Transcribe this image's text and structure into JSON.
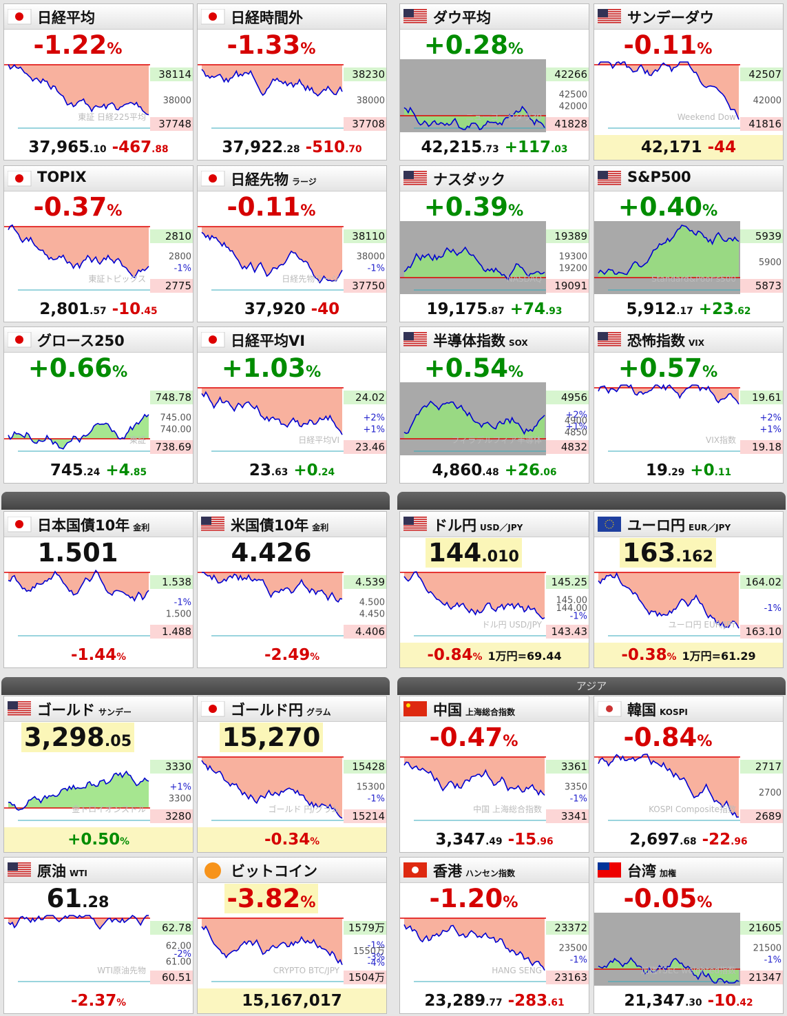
{
  "sections": [
    "アジア"
  ],
  "tiles": [
    {
      "flag": "jp",
      "title": "日経平均",
      "top": [
        "-1.22",
        "%"
      ],
      "hi": "38114",
      "lo": "37748",
      "marks": [
        "38000"
      ],
      "wm": "東証 日経225平均",
      "bottom": [
        "37,965",
        ".10",
        "-467",
        ".88"
      ],
      "chart": "neg"
    },
    {
      "flag": "jp",
      "title": "日経時間外",
      "top": [
        "-1.33",
        "%"
      ],
      "hi": "38230",
      "lo": "37708",
      "marks": [
        "38000"
      ],
      "bottom": [
        "37,922",
        ".28",
        "-510",
        ".70"
      ],
      "chart": "neg"
    },
    {
      "flag": "us",
      "title": "ダウ平均",
      "top": [
        "+0.28",
        "%"
      ],
      "hi": "42266",
      "lo": "41828",
      "marks": [
        "42500",
        "42000"
      ],
      "wm": "ニューヨークダウ30",
      "bottom": [
        "42,215",
        ".73",
        "+117",
        ".03"
      ],
      "chart": "pos",
      "bg": "gray"
    },
    {
      "flag": "us",
      "title": "サンデーダウ",
      "top": [
        "-0.11",
        "%"
      ],
      "hi": "42507",
      "lo": "41816",
      "marks": [
        "42000"
      ],
      "wm": "Weekend Dow",
      "bottom": [
        "42,171",
        "-44"
      ],
      "chart": "neg",
      "footbg": true
    },
    {
      "flag": "jp",
      "title": "TOPIX",
      "top": [
        "-0.37",
        "%"
      ],
      "hi": "2810",
      "lo": "2775",
      "marks": [
        "2800",
        "-1%"
      ],
      "wm": "東証トピックス",
      "bottom": [
        "2,801",
        ".57",
        "-10",
        ".45"
      ],
      "chart": "neg"
    },
    {
      "flag": "jp",
      "title": "日経先物",
      "sub": "ラージ",
      "top": [
        "-0.11",
        "%"
      ],
      "hi": "38110",
      "lo": "37750",
      "marks": [
        "38000",
        "-1%"
      ],
      "wm": "日経先物ラージ",
      "bottom": [
        "37,920",
        "-40"
      ],
      "chart": "neg"
    },
    {
      "flag": "us",
      "title": "ナスダック",
      "top": [
        "+0.39",
        "%"
      ],
      "hi": "19389",
      "lo": "19091",
      "marks": [
        "19300",
        "19200"
      ],
      "wm": "NASDAQ",
      "bottom": [
        "19,175",
        ".87",
        "+74",
        ".93"
      ],
      "chart": "pos",
      "bg": "gray"
    },
    {
      "flag": "us",
      "title": "S&P500",
      "top": [
        "+0.40",
        "%"
      ],
      "hi": "5939",
      "lo": "5873",
      "marks": [
        "5900"
      ],
      "wm": "Standard&Poor's500",
      "bottom": [
        "5,912",
        ".17",
        "+23",
        ".62"
      ],
      "chart": "pos",
      "bg": "gray"
    },
    {
      "flag": "jp",
      "title": "グロース250",
      "top": [
        "+0.66",
        "%"
      ],
      "hi": "748.78",
      "lo": "738.69",
      "marks": [
        "745.00",
        "740.00"
      ],
      "wm": "東証",
      "bottom": [
        "745",
        ".24",
        "+4",
        ".85"
      ],
      "chart": "pos"
    },
    {
      "flag": "jp",
      "title": "日経平均VI",
      "top": [
        "+1.03",
        "%"
      ],
      "hi": "24.02",
      "lo": "23.46",
      "marks": [
        "+2%",
        "+1%"
      ],
      "wm": "日経平均VI",
      "bottom": [
        "23",
        ".63",
        "+0",
        ".24"
      ],
      "chart": "neg"
    },
    {
      "flag": "us",
      "title": "半導体指数",
      "sub": "SOX",
      "top": [
        "+0.54",
        "%"
      ],
      "hi": "4956",
      "lo": "4832",
      "marks": [
        "+2%",
        "4900",
        "+1%",
        "4850"
      ],
      "wm": "フィラデルフィア半導体",
      "bottom": [
        "4,860",
        ".48",
        "+26",
        ".06"
      ],
      "chart": "pos",
      "bg": "gray"
    },
    {
      "flag": "us",
      "title": "恐怖指数",
      "sub": "VIX",
      "top": [
        "+0.57",
        "%"
      ],
      "hi": "19.61",
      "lo": "19.18",
      "marks": [
        "+2%",
        "+1%"
      ],
      "wm": "VIX指数",
      "bottom": [
        "19",
        ".29",
        "+0",
        ".11"
      ],
      "chart": "neg"
    },
    {
      "flag": "jp",
      "title": "日本国債10年",
      "sub": "金利",
      "top": [
        "1.501"
      ],
      "hi": "1.538",
      "lo": "1.488",
      "marks": [
        "-1%",
        "1.500"
      ],
      "bottom": [
        "-1.44",
        "%"
      ],
      "chart": "neg"
    },
    {
      "flag": "us",
      "title": "米国債10年",
      "sub": "金利",
      "top": [
        "4.426"
      ],
      "hi": "4.539",
      "lo": "4.406",
      "marks": [
        "4.500",
        "4.450"
      ],
      "bottom": [
        "-2.49",
        "%"
      ],
      "chart": "neg"
    },
    {
      "flag": "us",
      "title": "ドル円",
      "sub": "USD／JPY",
      "top": [
        "144",
        ".010"
      ],
      "highlight": true,
      "hi": "145.25",
      "lo": "143.43",
      "marks": [
        "145.00",
        "144.00",
        "-1%"
      ],
      "wm": "ドル円 USD/JPY",
      "bottom": [
        "-0.84",
        "%",
        "1万円=69.44"
      ],
      "chart": "neg",
      "footbg": true
    },
    {
      "flag": "eu",
      "title": "ユーロ円",
      "sub": "EUR／JPY",
      "top": [
        "163",
        ".162"
      ],
      "highlight": true,
      "hi": "164.02",
      "lo": "163.10",
      "marks": [
        "-1%"
      ],
      "wm": "ユーロ円 EUR/JPY",
      "bottom": [
        "-0.38",
        "%",
        "1万円=61.29"
      ],
      "chart": "neg",
      "footbg": true
    },
    {
      "flag": "us",
      "title": "ゴールド",
      "sub": "サンデー",
      "top": [
        "3,298",
        ".05"
      ],
      "highlight": true,
      "hi": "3330",
      "lo": "3280",
      "marks": [
        "+1%",
        "3300"
      ],
      "wm": "金トロイオンスドル",
      "bottom": [
        "+0.50",
        "%"
      ],
      "chart": "pos",
      "footbg": true
    },
    {
      "flag": "jp",
      "title": "ゴールド円",
      "sub": "グラム",
      "top": [
        "15,270"
      ],
      "highlight": true,
      "hi": "15428",
      "lo": "15214",
      "marks": [
        "15300",
        "-1%"
      ],
      "wm": "ゴールド 円/グラム",
      "bottom": [
        "-0.34",
        "%"
      ],
      "chart": "neg",
      "footbg": true
    },
    {
      "flag": "cn",
      "title": "中国",
      "sub": "上海総合指数",
      "top": [
        "-0.47",
        "%"
      ],
      "hi": "3361",
      "lo": "3341",
      "marks": [
        "3350",
        "-1%"
      ],
      "wm": "中国 上海総合指数",
      "bottom": [
        "3,347",
        ".49",
        "-15",
        ".96"
      ],
      "chart": "neg"
    },
    {
      "flag": "kr",
      "title": "韓国",
      "sub": "KOSPI",
      "top": [
        "-0.84",
        "%"
      ],
      "hi": "2717",
      "lo": "2689",
      "marks": [
        "2700"
      ],
      "wm": "KOSPI Composite指数",
      "bottom": [
        "2,697",
        ".68",
        "-22",
        ".96"
      ],
      "chart": "neg"
    },
    {
      "flag": "us",
      "title": "原油",
      "sub": "WTI",
      "top": [
        "61",
        ".28"
      ],
      "hi": "62.78",
      "lo": "60.51",
      "marks": [
        "62.00",
        "-2%",
        "61.00"
      ],
      "wm": "WTI原油先物",
      "bottom": [
        "-2.37",
        "%"
      ],
      "chart": "neg"
    },
    {
      "flag": "btc",
      "title": "ビットコイン",
      "top": [
        "-3.82",
        "%"
      ],
      "highlight": true,
      "hi": "1579万",
      "lo": "1504万",
      "marks": [
        "-1%",
        "1550万",
        "-3%",
        "-4%"
      ],
      "wm": "CRYPTO BTC/JPY",
      "bottom": [
        "15,167,017"
      ],
      "chart": "neg",
      "footbg": true
    },
    {
      "flag": "hk",
      "title": "香港",
      "sub": "ハンセン指数",
      "top": [
        "-1.20",
        "%"
      ],
      "hi": "23372",
      "lo": "23163",
      "marks": [
        "23500",
        "-1%"
      ],
      "wm": "HANG SENG",
      "bottom": [
        "23,289",
        ".77",
        "-283",
        ".61"
      ],
      "chart": "neg"
    },
    {
      "flag": "tw",
      "title": "台湾",
      "sub": "加権",
      "top": [
        "-0.05",
        "%"
      ],
      "hi": "21605",
      "lo": "21347",
      "marks": [
        "21500",
        "-1%"
      ],
      "wm": "加権TSEC weighted指数",
      "bottom": [
        "21,347",
        ".30",
        "-10",
        ".42"
      ],
      "chart": "pos",
      "bg": "gray"
    }
  ]
}
